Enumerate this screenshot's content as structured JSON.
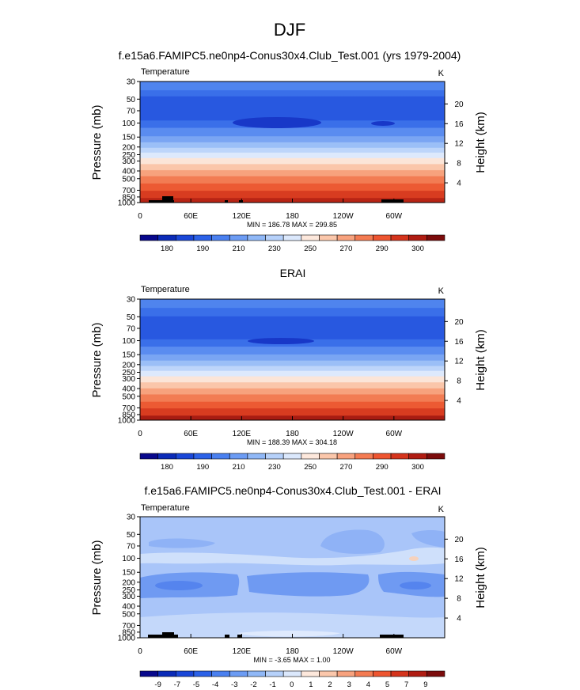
{
  "figure": {
    "title": "DJF",
    "units": "K",
    "variable": "Temperature"
  },
  "axes": {
    "ylabel_left": "Pressure (mb)",
    "ylabel_right": "Height (km)",
    "pressure_ticks": [
      "30",
      "50",
      "70",
      "100",
      "150",
      "200",
      "250",
      "300",
      "400",
      "500",
      "700",
      "850",
      "1000"
    ],
    "pressure_values": [
      30,
      50,
      70,
      100,
      150,
      200,
      250,
      300,
      400,
      500,
      700,
      850,
      1000
    ],
    "height_ticks": [
      "20",
      "16",
      "12",
      "8",
      "4"
    ],
    "height_values": [
      20,
      16,
      12,
      8,
      4
    ],
    "lon_ticks": [
      "0",
      "60E",
      "120E",
      "180",
      "120W",
      "60W"
    ],
    "lon_values": [
      0,
      60,
      120,
      180,
      240,
      300
    ],
    "xlim": [
      0,
      360
    ],
    "ylim": [
      1000,
      30
    ]
  },
  "colors": {
    "abs_bar": [
      "#08088c",
      "#0b2bb8",
      "#1a47d8",
      "#2c62e8",
      "#4a80f0",
      "#6c9cf4",
      "#90b8f7",
      "#b6d1fa",
      "#dbe8fc",
      "#fde8dc",
      "#fbc7ab",
      "#f8a27e",
      "#f47b52",
      "#ee5530",
      "#d5341c",
      "#b01c12",
      "#7c0c0c"
    ],
    "diff_bar": [
      "#08088c",
      "#0b2bb8",
      "#1a47d8",
      "#2c62e8",
      "#4a80f0",
      "#6c9cf4",
      "#90b8f7",
      "#b6d1fa",
      "#dbe8fc",
      "#fde8dc",
      "#fbc7ab",
      "#f8a27e",
      "#f47b52",
      "#ee5530",
      "#d5341c",
      "#b01c12",
      "#7c0c0c"
    ],
    "topography": "#000000"
  },
  "chart_data": [
    {
      "type": "heatmap",
      "title": "f.e15a6.FAMIPC5.ne0np4-Conus30x4.Club_Test.001 (yrs 1979-2004)",
      "left_label": "Temperature",
      "right_label": "K",
      "stats": "MIN = 186.78  MAX = 299.85",
      "colorbar_labels": [
        "180",
        "190",
        "210",
        "230",
        "250",
        "270",
        "290",
        "300"
      ],
      "levels_K": [
        [
          30,
          217
        ],
        [
          50,
          207
        ],
        [
          70,
          200
        ],
        [
          100,
          195
        ],
        [
          150,
          203
        ],
        [
          200,
          213
        ],
        [
          250,
          221
        ],
        [
          300,
          229
        ],
        [
          400,
          243
        ],
        [
          500,
          254
        ],
        [
          700,
          270
        ],
        [
          850,
          280
        ],
        [
          1000,
          288
        ]
      ],
      "min": 186.78,
      "max": 299.85
    },
    {
      "type": "heatmap",
      "title": "ERAI",
      "left_label": "Temperature",
      "right_label": "K",
      "stats": "MIN = 188.39  MAX = 304.18",
      "colorbar_labels": [
        "180",
        "190",
        "210",
        "230",
        "250",
        "270",
        "290",
        "300"
      ],
      "levels_K": [
        [
          30,
          218
        ],
        [
          50,
          208
        ],
        [
          70,
          201
        ],
        [
          100,
          196
        ],
        [
          150,
          204
        ],
        [
          200,
          214
        ],
        [
          250,
          222
        ],
        [
          300,
          230
        ],
        [
          400,
          244
        ],
        [
          500,
          255
        ],
        [
          700,
          271
        ],
        [
          850,
          281
        ],
        [
          1000,
          289
        ]
      ],
      "min": 188.39,
      "max": 304.18
    },
    {
      "type": "heatmap",
      "title": "f.e15a6.FAMIPC5.ne0np4-Conus30x4.Club_Test.001 - ERAI",
      "left_label": "Temperature",
      "right_label": "K",
      "stats": "MIN = -3.65  MAX =  1.00",
      "colorbar_labels": [
        "-9",
        "-7",
        "-5",
        "-4",
        "-3",
        "-2",
        "-1",
        "0",
        "1",
        "2",
        "3",
        "4",
        "5",
        "7",
        "9"
      ],
      "min": -3.65,
      "max": 1.0
    }
  ]
}
